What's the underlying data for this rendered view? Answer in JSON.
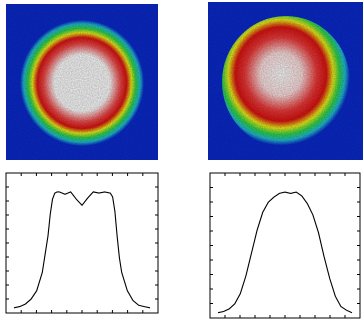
{
  "colors": {
    "background": "#0a2ad0",
    "ring_green": "#2fd84a",
    "ring_yellow": "#f2f21a",
    "core_red": "#e01212",
    "center_white": "#ffffff",
    "profile_line": "#000000"
  },
  "chart_data": [
    {
      "type": "heatmap",
      "colormap": [
        "blue",
        "cyan",
        "green",
        "yellow",
        "red",
        "white"
      ],
      "spot_shape": "circular",
      "flat_top": true
    },
    {
      "type": "heatmap",
      "colormap": [
        "blue",
        "cyan",
        "green",
        "yellow",
        "red",
        "white"
      ],
      "spot_shape": "circular",
      "flat_top": false
    },
    {
      "type": "line",
      "x": [
        0,
        5,
        10,
        15,
        20,
        25,
        30,
        32,
        34,
        36,
        38,
        40,
        45,
        50,
        55,
        60,
        65,
        70,
        75,
        80,
        85,
        87,
        89,
        91,
        93,
        95,
        100,
        105,
        110,
        115,
        120
      ],
      "y": [
        0.01,
        0.02,
        0.04,
        0.08,
        0.15,
        0.3,
        0.6,
        0.78,
        0.9,
        0.95,
        0.96,
        0.96,
        0.94,
        0.96,
        0.9,
        0.85,
        0.91,
        0.96,
        0.95,
        0.96,
        0.95,
        0.92,
        0.8,
        0.6,
        0.42,
        0.3,
        0.15,
        0.07,
        0.03,
        0.02,
        0.01
      ],
      "grid": false,
      "xlim": [
        0,
        120
      ],
      "ylim": [
        0,
        1
      ]
    },
    {
      "type": "line",
      "x": [
        0,
        5,
        10,
        15,
        20,
        25,
        30,
        35,
        40,
        45,
        50,
        55,
        60,
        65,
        70,
        75,
        80,
        85,
        90,
        95,
        100,
        105,
        110,
        115,
        120
      ],
      "y": [
        0.01,
        0.02,
        0.04,
        0.08,
        0.16,
        0.3,
        0.48,
        0.66,
        0.8,
        0.88,
        0.92,
        0.95,
        0.96,
        0.95,
        0.96,
        0.93,
        0.87,
        0.78,
        0.64,
        0.45,
        0.28,
        0.14,
        0.06,
        0.03,
        0.01
      ],
      "grid": false,
      "xlim": [
        0,
        120
      ],
      "ylim": [
        0,
        1
      ]
    }
  ]
}
